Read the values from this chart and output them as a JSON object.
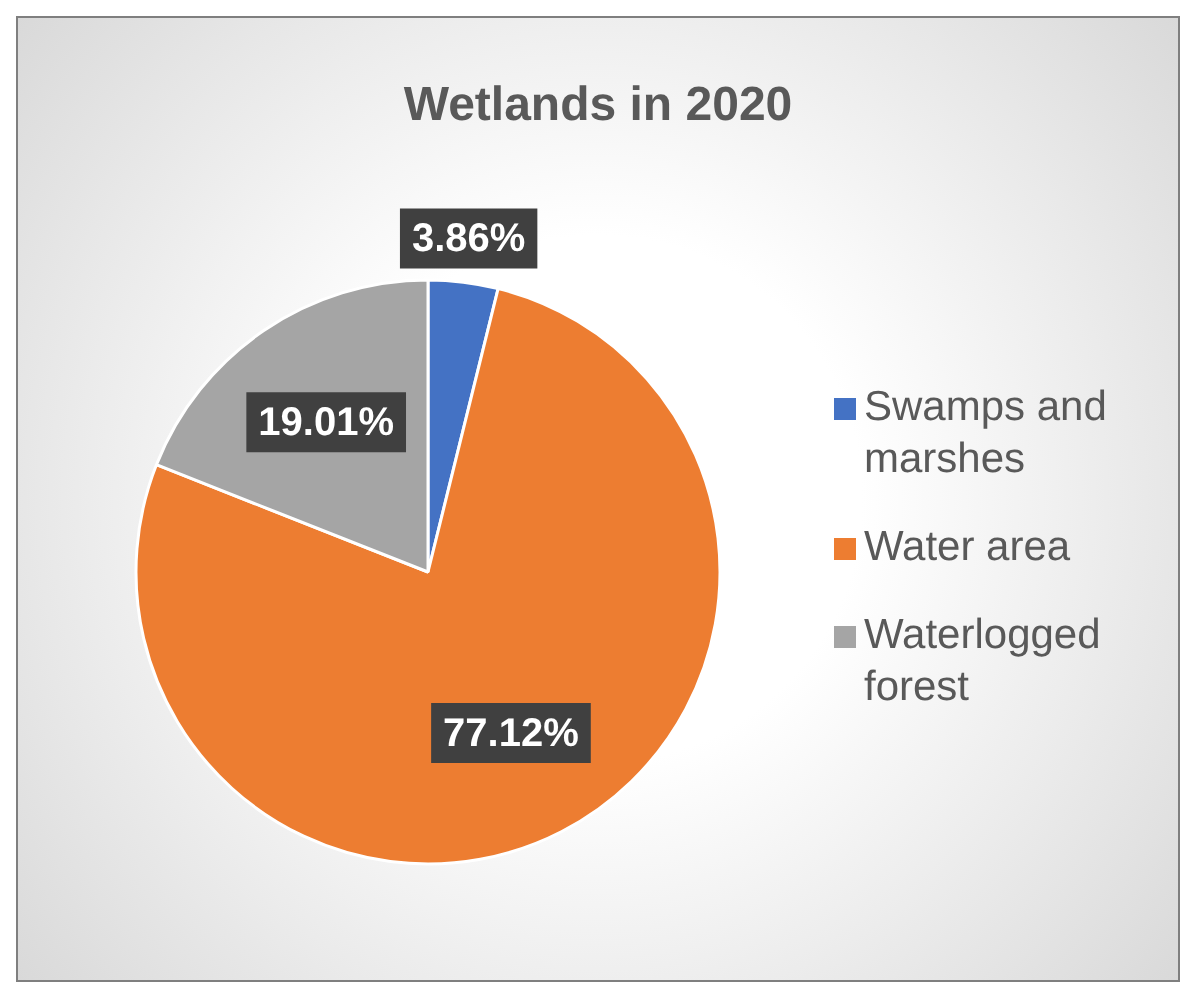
{
  "chart_data": {
    "type": "pie",
    "title": "Wetlands in 2020",
    "categories": [
      "Swamps and marshes",
      "Water area",
      "Waterlogged forest"
    ],
    "values": [
      3.86,
      77.12,
      19.01
    ],
    "colors": [
      "#4472c4",
      "#ed7d31",
      "#a5a5a5"
    ],
    "value_labels": [
      "3.86%",
      "77.12%",
      "19.01%"
    ],
    "legend": "right"
  }
}
